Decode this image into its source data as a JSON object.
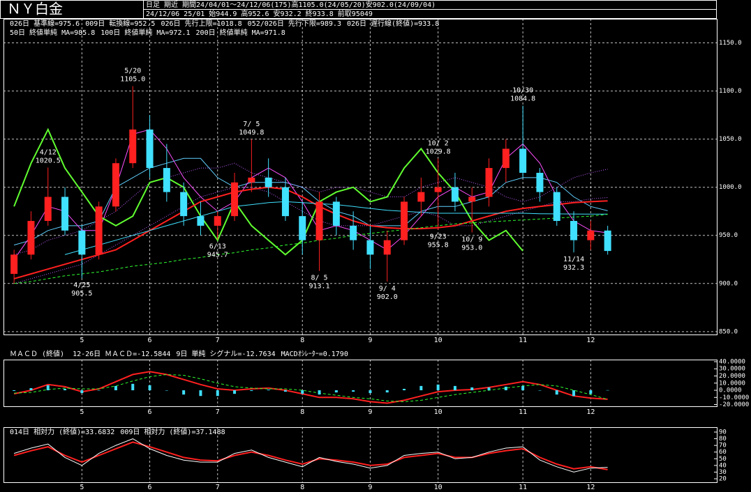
{
  "header": {
    "title": "ＮＹ白金",
    "info": "日足 期近 期間24/04/01～24/12/06(175)高1105.0(24/05/20)安902.0(24/09/04)",
    "quote": "24/12/06 25/01 始944.9 高952.6 安932.2 終933.8 前取95049"
  },
  "chart_data": [
    {
      "type": "candlestick",
      "categories": [
        null,
        null,
        null,
        null,
        "5",
        null,
        null,
        null,
        "6",
        null,
        null,
        null,
        "7",
        null,
        null,
        null,
        null,
        "8",
        null,
        null,
        null,
        "9",
        null,
        null,
        null,
        "10",
        null,
        null,
        null,
        null,
        "11",
        null,
        null,
        null,
        "12",
        null
      ],
      "open": [
        910,
        930,
        965,
        990,
        955,
        930,
        980,
        1025,
        1060,
        1020,
        995,
        970,
        960,
        970,
        1005,
        1010,
        1000,
        970,
        945,
        985,
        960,
        945,
        930,
        945,
        985,
        995,
        1000,
        985,
        990,
        1020,
        1040,
        1015,
        995,
        965,
        945,
        955
      ],
      "high": [
        935,
        975,
        1020.5,
        1000,
        960,
        985,
        1030,
        1105,
        1075,
        1045,
        1005,
        985,
        975,
        1015,
        1049.8,
        1030,
        1010,
        985,
        995,
        990,
        975,
        960,
        955,
        990,
        1010,
        1029.8,
        1015,
        1000,
        1030,
        1050,
        1084.8,
        1020,
        1000,
        975,
        965,
        960
      ],
      "low": [
        900,
        925,
        960,
        950,
        905.5,
        925,
        975,
        1020,
        1010,
        985,
        960,
        950,
        945.7,
        965,
        995,
        990,
        965,
        930,
        913.1,
        950,
        935,
        915,
        902,
        940,
        970,
        955.8,
        975,
        953,
        980,
        1005,
        1010,
        985,
        960,
        932.3,
        935,
        930
      ],
      "close": [
        930,
        965,
        990,
        955,
        930,
        980,
        1025,
        1060,
        1020,
        995,
        970,
        960,
        970,
        1005,
        1010,
        1000,
        970,
        945,
        985,
        960,
        945,
        930,
        945,
        985,
        995,
        1000,
        985,
        990,
        1020,
        1040,
        1015,
        995,
        965,
        945,
        955,
        933.8
      ],
      "up_color": "#ff2020",
      "down_color": "#40e0ff",
      "series": [
        {
          "name": "026日 基準線=975.6",
          "color": "#60d0ff",
          "style": "thin",
          "values": [
            940,
            945,
            955,
            960,
            960,
            965,
            1000,
            1010,
            1020,
            1025,
            1030,
            1030,
            1010,
            1000,
            1005,
            1005,
            1005,
            1000,
            985,
            975,
            970,
            960,
            960,
            960,
            975,
            980,
            980,
            985,
            990,
            1005,
            1010,
            1010,
            1005,
            990,
            980,
            975.6
          ]
        },
        {
          "name": "009日 転換線=952.5",
          "color": "#ff50ff",
          "style": "thin",
          "values": [
            925,
            950,
            980,
            975,
            955,
            955,
            1000,
            1055,
            1060,
            1040,
            1010,
            990,
            975,
            985,
            1010,
            1020,
            1010,
            985,
            955,
            960,
            955,
            945,
            935,
            950,
            970,
            990,
            1000,
            990,
            995,
            1030,
            1045,
            1025,
            990,
            965,
            955,
            952.5
          ]
        },
        {
          "name": "026日 先行上限=1018.8",
          "color": "#c060ff",
          "style": "dotted",
          "values": [
            930,
            935,
            945,
            950,
            955,
            965,
            975,
            990,
            1005,
            1010,
            1015,
            1020,
            1020,
            1025,
            1015,
            1010,
            1005,
            1000,
            995,
            1000,
            1000,
            995,
            990,
            990,
            1000,
            1005,
            1010,
            1005,
            1000,
            990,
            985,
            990,
            1000,
            1010,
            1015,
            1018.8
          ]
        },
        {
          "name": "052/026日 先行下限=989.3",
          "color": "#c060ff",
          "style": "dotted",
          "values": [
            900,
            905,
            910,
            915,
            920,
            930,
            940,
            950,
            960,
            970,
            980,
            990,
            995,
            1000,
            1000,
            995,
            985,
            975,
            965,
            960,
            960,
            960,
            965,
            970,
            975,
            970,
            960,
            960,
            965,
            970,
            975,
            980,
            985,
            985,
            988,
            989.3
          ]
        },
        {
          "name": "026日 遅行線(終値)=933.8",
          "color": "#60ff30",
          "style": "thick",
          "values": [
            980,
            1025,
            1060,
            1020,
            995,
            970,
            960,
            970,
            1005,
            1010,
            1000,
            970,
            945,
            985,
            960,
            945,
            930,
            945,
            985,
            995,
            1000,
            985,
            990,
            1020,
            1040,
            1015,
            995,
            965,
            945,
            955,
            933.8,
            null,
            null,
            null,
            null,
            null
          ]
        },
        {
          "name": "50日 終値単純 MA=985.8",
          "color": "#ff2020",
          "style": "thick",
          "values": [
            905,
            910,
            915,
            920,
            925,
            930,
            935,
            945,
            955,
            965,
            975,
            985,
            990,
            995,
            998,
            1000,
            998,
            990,
            980,
            972,
            965,
            960,
            958,
            957,
            957,
            958,
            960,
            965,
            970,
            975,
            978,
            980,
            982,
            984,
            985,
            985.8
          ]
        },
        {
          "name": "100日 終値単純 MA=972.1",
          "color": "#40e0ff",
          "style": "thin",
          "values": [
            null,
            null,
            null,
            930,
            935,
            940,
            945,
            950,
            955,
            960,
            965,
            970,
            975,
            980,
            982,
            984,
            985,
            984,
            983,
            982,
            980,
            978,
            976,
            975,
            974,
            973,
            973,
            973,
            973,
            973,
            973,
            972.5,
            972.3,
            972.2,
            972.1,
            972.1
          ]
        },
        {
          "name": "200日 終値単純 MA=971.8",
          "color": "#30ff30",
          "style": "dashed",
          "values": [
            900,
            902,
            905,
            908,
            910,
            912,
            915,
            918,
            920,
            922,
            925,
            927,
            930,
            932,
            935,
            937,
            940,
            942,
            945,
            947,
            950,
            952,
            954,
            956,
            958,
            960,
            962,
            963,
            964,
            965,
            966,
            967,
            968,
            969,
            970,
            971.8
          ]
        }
      ],
      "annotations": [
        {
          "date": "4/12",
          "value": 1020.5,
          "color": "#ff3030",
          "position": "above"
        },
        {
          "date": "5/20",
          "value": 1105,
          "label": "1105.0",
          "color": "#ff3030",
          "position": "above"
        },
        {
          "date": "7/ 5",
          "value": 1049.8,
          "color": "#ff3030",
          "position": "above"
        },
        {
          "date": "10/ 2",
          "value": 1029.8,
          "color": "#ff3030",
          "position": "above"
        },
        {
          "date": "10/30",
          "value": 1084.8,
          "color": "#ff3030",
          "position": "above"
        },
        {
          "date": "4/25",
          "value": 905.5,
          "color": "#40e0ff",
          "position": "below"
        },
        {
          "date": "6/13",
          "value": 945.7,
          "color": "#40e0ff",
          "position": "below"
        },
        {
          "date": "8/ 5",
          "value": 913.1,
          "color": "#40e0ff",
          "position": "below"
        },
        {
          "date": "9/ 4",
          "value": 902,
          "label": "902.0",
          "color": "#40e0ff",
          "position": "below"
        },
        {
          "date": "9/23",
          "value": 955.8,
          "color": "#40e0ff",
          "position": "below"
        },
        {
          "date": "10/ 9",
          "value": 953,
          "label": "953.0",
          "color": "#40e0ff",
          "position": "below"
        },
        {
          "date": "11/14",
          "value": 932.3,
          "color": "#40e0ff",
          "position": "below"
        }
      ],
      "ylim": [
        847,
        1175
      ],
      "yticks": [
        {
          "value": 850,
          "label": "850.0"
        },
        {
          "value": 900,
          "label": "900.0"
        },
        {
          "value": 950,
          "label": "950.0"
        },
        {
          "value": 1000,
          "label": "1000.0"
        },
        {
          "value": 1050,
          "label": "1050.0"
        },
        {
          "value": 1100,
          "label": "1100.0"
        },
        {
          "value": 1150,
          "label": "1150.0"
        }
      ],
      "grid": true
    },
    {
      "type": "line",
      "title": "ＭＡＣＤ (終値)",
      "categories": [
        null,
        null,
        null,
        null,
        "5",
        null,
        null,
        null,
        "6",
        null,
        null,
        null,
        "7",
        null,
        null,
        null,
        null,
        "8",
        null,
        null,
        null,
        "9",
        null,
        null,
        null,
        "10",
        null,
        null,
        null,
        null,
        "11",
        null,
        null,
        null,
        "12",
        null
      ],
      "series": [
        {
          "name": "12-26日 ＭＡＣＤ=-12.5844",
          "color": "#ff2020",
          "style": "thick",
          "values": [
            -5,
            0,
            8,
            5,
            -2,
            2,
            12,
            22,
            26,
            22,
            15,
            8,
            2,
            0,
            2,
            3,
            0,
            -5,
            -10,
            -10,
            -12,
            -16,
            -18,
            -14,
            -8,
            -2,
            0,
            1,
            4,
            8,
            12,
            8,
            0,
            -8,
            -11,
            -12.5844
          ]
        },
        {
          "name": "9日 単純 シグナル=-12.7634",
          "color": "#30ff30",
          "style": "dashed",
          "values": [
            -4,
            -3,
            1,
            3,
            2,
            2,
            6,
            13,
            19,
            22,
            21,
            16,
            10,
            5,
            3,
            2,
            2,
            0,
            -4,
            -7,
            -10,
            -12,
            -15,
            -16,
            -14,
            -10,
            -6,
            -3,
            0,
            3,
            6,
            8,
            6,
            0,
            -6,
            -12.7634
          ]
        },
        {
          "name": "MACDｵｼﾚｰﾀｰ=0.1790",
          "color": "#40e0ff",
          "type": "bar",
          "values": [
            -1,
            3,
            7,
            2,
            -4,
            0,
            6,
            9,
            7,
            0,
            -6,
            -8,
            -8,
            -5,
            -1,
            1,
            -2,
            -5,
            -6,
            -3,
            -2,
            -4,
            -3,
            2,
            6,
            8,
            6,
            4,
            4,
            5,
            6,
            0,
            -6,
            -8,
            -5,
            0.179
          ]
        }
      ],
      "ylim": [
        -22.4,
        42.9
      ],
      "yticks": [
        {
          "value": -20,
          "label": "-20.0000"
        },
        {
          "value": -10,
          "label": "-10.0000"
        },
        {
          "value": 0,
          "label": "0.0000"
        },
        {
          "value": 10,
          "label": "10.0000"
        },
        {
          "value": 20,
          "label": "20.0000"
        },
        {
          "value": 30,
          "label": "30.0000"
        },
        {
          "value": 40,
          "label": "40.0000"
        }
      ],
      "grid": false
    },
    {
      "type": "line",
      "categories": [
        null,
        null,
        null,
        null,
        "5",
        null,
        null,
        null,
        "6",
        null,
        null,
        null,
        "7",
        null,
        null,
        null,
        null,
        "8",
        null,
        null,
        null,
        "9",
        null,
        null,
        null,
        "10",
        null,
        null,
        null,
        null,
        "11",
        null,
        null,
        null,
        "12",
        null
      ],
      "series": [
        {
          "name": "014日 相対力 (終値)=33.6832",
          "color": "#ff2020",
          "style": "thick",
          "values": [
            55,
            62,
            68,
            55,
            45,
            55,
            65,
            75,
            68,
            60,
            52,
            48,
            47,
            55,
            60,
            55,
            48,
            42,
            50,
            48,
            45,
            40,
            42,
            52,
            55,
            58,
            52,
            52,
            58,
            62,
            65,
            52,
            42,
            35,
            38,
            33.6832
          ]
        },
        {
          "name": "009日 相対力 (終値)=37.1488",
          "color": "#ffffff",
          "style": "thin",
          "values": [
            58,
            66,
            72,
            52,
            40,
            58,
            70,
            80,
            65,
            55,
            48,
            45,
            45,
            58,
            63,
            52,
            45,
            38,
            52,
            46,
            42,
            36,
            40,
            55,
            58,
            60,
            50,
            52,
            60,
            66,
            68,
            48,
            38,
            30,
            36,
            37.1488
          ]
        }
      ],
      "ylim": [
        14.8,
        97.3
      ],
      "yticks": [
        20,
        30,
        40,
        50,
        60,
        70,
        80,
        90
      ],
      "grid": false
    }
  ]
}
